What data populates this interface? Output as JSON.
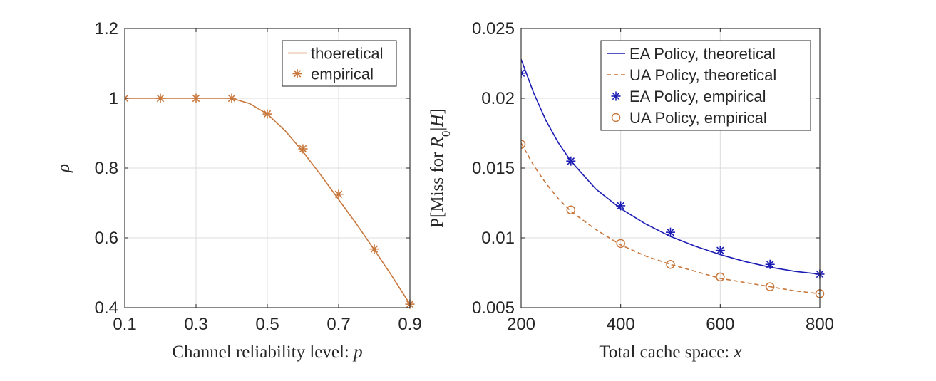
{
  "colors": {
    "theory_orange": "#c8763a",
    "empirical_orange": "#c8763a",
    "ea_blue": "#1c1cb4",
    "grid": "#dcdcdc",
    "axis": "#262626"
  },
  "chart_data": [
    {
      "type": "line",
      "title": "",
      "xlabel": "Channel reliability level: p",
      "ylabel": "ρ",
      "xlim": [
        0.1,
        0.9
      ],
      "ylim": [
        0.4,
        1.2
      ],
      "xticks": [
        0.1,
        0.3,
        0.5,
        0.7,
        0.9
      ],
      "xtick_labels": [
        "0.1",
        "0.3",
        "0.5",
        "0.7",
        "0.9"
      ],
      "yticks": [
        0.4,
        0.6,
        0.8,
        1.0,
        1.2
      ],
      "ytick_labels": [
        "0.4",
        "0.6",
        "0.8",
        "1",
        "1.2"
      ],
      "grid": true,
      "legend_position": "top-right",
      "series": [
        {
          "name": "thoeretical",
          "style": "solid",
          "marker": "none",
          "color": "#c8763a",
          "x": [
            0.1,
            0.2,
            0.3,
            0.35,
            0.4,
            0.45,
            0.5,
            0.55,
            0.6,
            0.65,
            0.7,
            0.75,
            0.8,
            0.85,
            0.9
          ],
          "y": [
            1.0,
            1.0,
            1.0,
            1.0,
            1.0,
            0.985,
            0.955,
            0.907,
            0.847,
            0.78,
            0.71,
            0.64,
            0.566,
            0.49,
            0.41
          ]
        },
        {
          "name": "empirical",
          "style": "none",
          "marker": "asterisk",
          "color": "#c8763a",
          "x": [
            0.1,
            0.2,
            0.3,
            0.4,
            0.5,
            0.6,
            0.7,
            0.8,
            0.9
          ],
          "y": [
            1.0,
            1.0,
            1.0,
            1.0,
            0.955,
            0.855,
            0.725,
            0.568,
            0.41
          ]
        }
      ]
    },
    {
      "type": "line",
      "title": "",
      "xlabel": "Total cache space: x",
      "ylabel": "P[Miss for R0|H]",
      "xlim": [
        200,
        800
      ],
      "ylim": [
        0.005,
        0.025
      ],
      "xticks": [
        200,
        400,
        600,
        800
      ],
      "xtick_labels": [
        "200",
        "400",
        "600",
        "800"
      ],
      "yticks": [
        0.005,
        0.01,
        0.015,
        0.02,
        0.025
      ],
      "ytick_labels": [
        "0.005",
        "0.01",
        "0.015",
        "0.02",
        "0.025"
      ],
      "grid": true,
      "legend_position": "top-right",
      "series": [
        {
          "name": "EA Policy, theoretical",
          "style": "solid",
          "marker": "none",
          "color": "#1c1cb4",
          "x": [
            200,
            225,
            250,
            275,
            300,
            350,
            400,
            450,
            500,
            550,
            600,
            650,
            700,
            750,
            800
          ],
          "y": [
            0.0228,
            0.0204,
            0.0184,
            0.0168,
            0.0155,
            0.0135,
            0.0121,
            0.011,
            0.0101,
            0.0094,
            0.0088,
            0.0083,
            0.0079,
            0.0076,
            0.0074
          ]
        },
        {
          "name": "UA Policy, theoretical",
          "style": "dashed",
          "marker": "none",
          "color": "#c8763a",
          "x": [
            200,
            225,
            250,
            275,
            300,
            350,
            400,
            450,
            500,
            550,
            600,
            650,
            700,
            750,
            800
          ],
          "y": [
            0.0168,
            0.0152,
            0.0139,
            0.0128,
            0.0119,
            0.0106,
            0.0095,
            0.0087,
            0.0081,
            0.0076,
            0.0071,
            0.0068,
            0.0065,
            0.0062,
            0.006
          ]
        },
        {
          "name": "EA Policy, empirical",
          "style": "none",
          "marker": "asterisk",
          "color": "#1c1cb4",
          "x": [
            200,
            300,
            400,
            500,
            600,
            700,
            800
          ],
          "y": [
            0.0218,
            0.0155,
            0.0123,
            0.0104,
            0.0091,
            0.0081,
            0.0074
          ]
        },
        {
          "name": "UA Policy, empirical",
          "style": "none",
          "marker": "circle",
          "color": "#c8763a",
          "x": [
            200,
            300,
            400,
            500,
            600,
            700,
            800
          ],
          "y": [
            0.0167,
            0.012,
            0.0096,
            0.0081,
            0.0072,
            0.0065,
            0.006
          ]
        }
      ]
    }
  ]
}
